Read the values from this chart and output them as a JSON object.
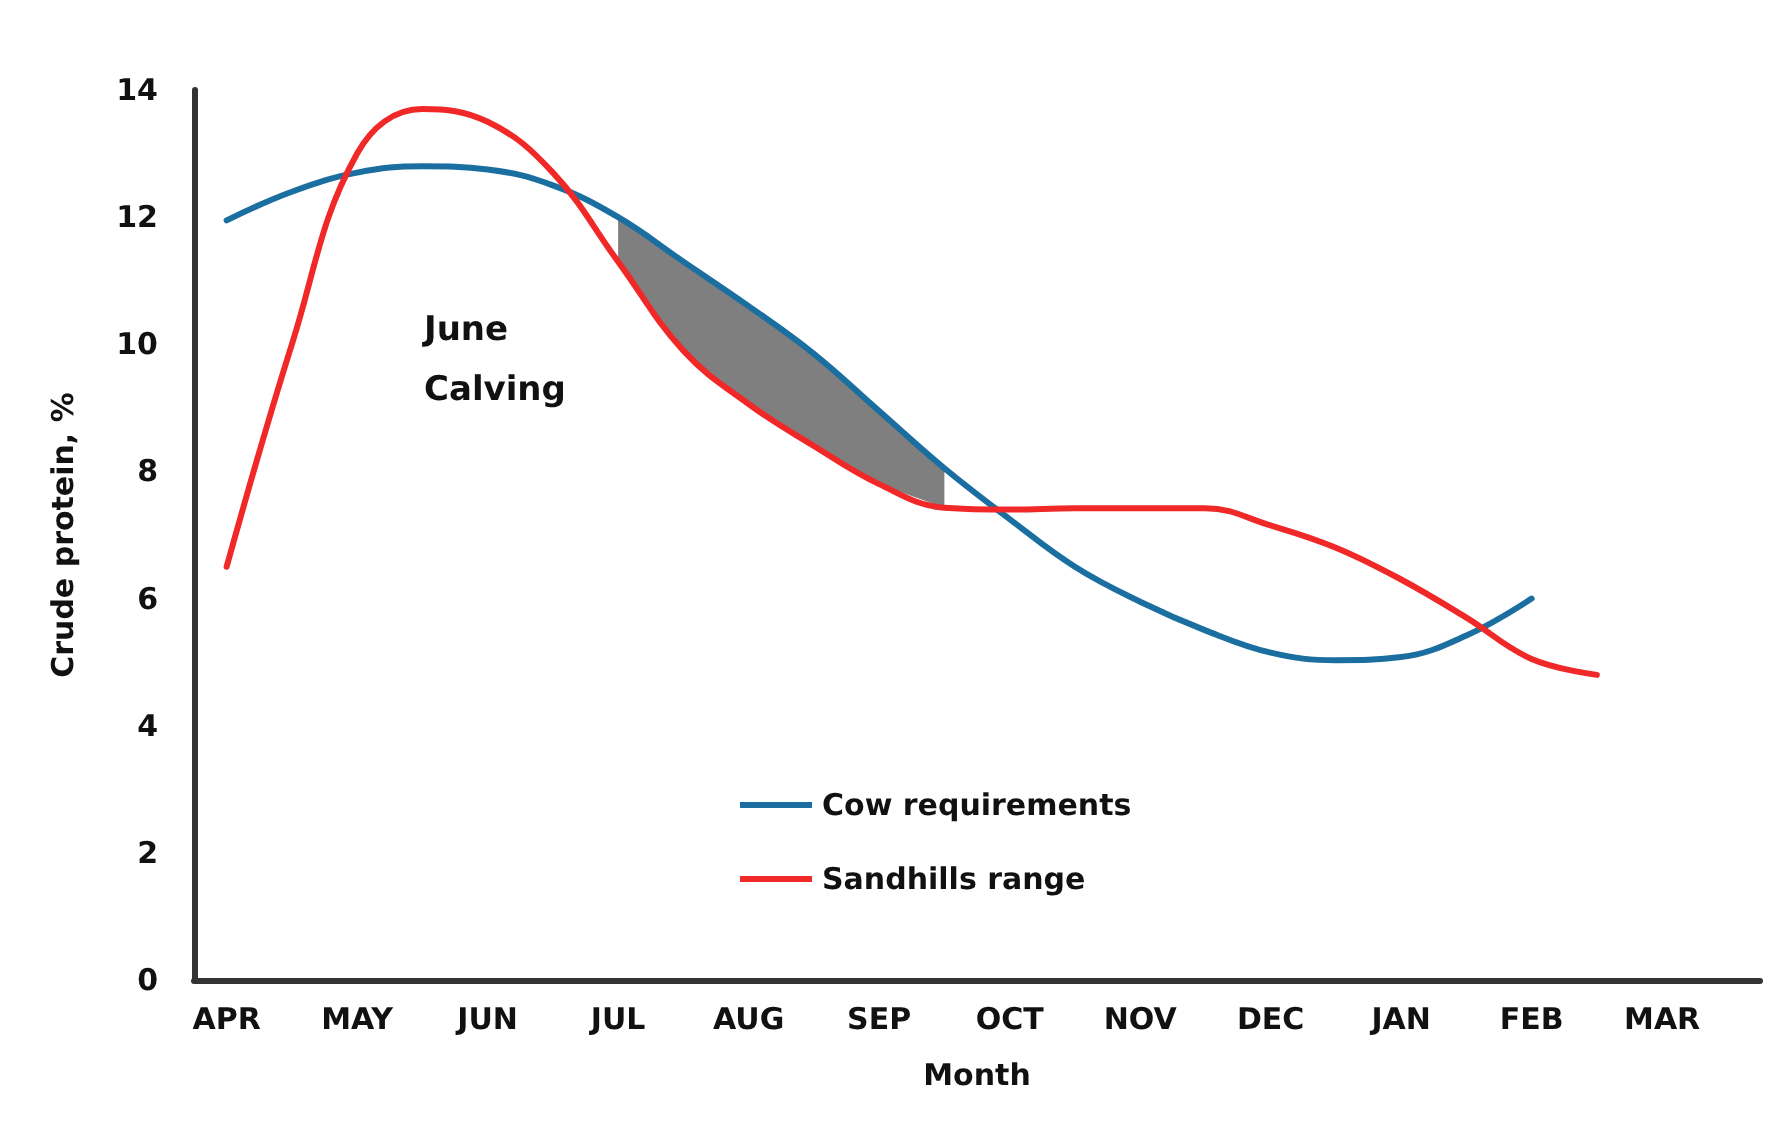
{
  "chart_data": {
    "type": "line",
    "xlabel": "Month",
    "ylabel": "Crude protein, %",
    "annotations": [
      "June Calving"
    ],
    "categories": [
      "APR",
      null,
      "MAY",
      null,
      "JUN",
      null,
      "JUL",
      null,
      "AUG",
      null,
      "SEP",
      null,
      "OCT",
      null,
      "NOV",
      null,
      "DEC",
      null,
      "JAN",
      null,
      "FEB",
      null,
      "MAR",
      null
    ],
    "ylim": [
      0,
      14
    ],
    "yticks": [
      0,
      2,
      4,
      6,
      8,
      10,
      12,
      14
    ],
    "grid": false,
    "legend": "bottom",
    "marker": "none",
    "line_style": "solid",
    "series": [
      {
        "name": "Cow requirements",
        "color": "#1a6fa0",
        "values": [
          11.95,
          12.4,
          12.7,
          12.8,
          12.75,
          12.5,
          12.0,
          11.3,
          10.6,
          9.85,
          8.95,
          8.05,
          7.25,
          6.5,
          5.95,
          5.5,
          5.15,
          5.03,
          5.08,
          5.42,
          6.0,
          null,
          null,
          null
        ],
        "lower": [
          null,
          null,
          null,
          null,
          null,
          null,
          11.3,
          9.9,
          9.06,
          8.4,
          7.8,
          7.43,
          null,
          null,
          null,
          null,
          null,
          null,
          null,
          null,
          null,
          null,
          null,
          null
        ],
        "upper": [
          null,
          null,
          null,
          null,
          null,
          null,
          12.0,
          11.3,
          10.6,
          9.85,
          8.95,
          8.05,
          null,
          null,
          null,
          null,
          null,
          null,
          null,
          null,
          null,
          null,
          null,
          null
        ]
      },
      {
        "name": "Sandhills range",
        "color": "#f02828",
        "values": [
          6.5,
          10.0,
          13.0,
          13.7,
          13.5,
          12.7,
          11.3,
          9.9,
          9.06,
          8.4,
          7.8,
          7.43,
          7.4,
          7.42,
          7.42,
          7.42,
          7.15,
          6.8,
          6.3,
          5.7,
          5.05,
          4.8,
          null,
          null
        ]
      }
    ]
  }
}
